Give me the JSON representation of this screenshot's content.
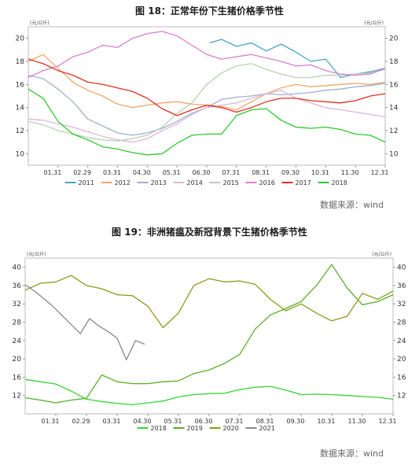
{
  "source_text": "数据来源：wind",
  "chart_data": [
    {
      "type": "line",
      "title": "图 18：正常年份下生猪价格季节性",
      "unit_left": "(元/公斤)",
      "unit_right": "(元/公斤)",
      "x_ticks": [
        "01.31",
        "02.29",
        "03.31",
        "04.30",
        "05.31",
        "06.30",
        "07.31",
        "08.31",
        "09.30",
        "10.31",
        "11.30",
        "12.31"
      ],
      "x_range": [
        0,
        12
      ],
      "ylim": [
        9,
        21
      ],
      "y_ticks": [
        10,
        12,
        14,
        16,
        18,
        20
      ],
      "grid": false,
      "legend_position": "bottom",
      "series": [
        {
          "name": "2011",
          "color": "#4aa3c8",
          "x": [
            6.1,
            6.5,
            7,
            7.5,
            8,
            8.5,
            9,
            9.5,
            10,
            10.5,
            11,
            11.5,
            12
          ],
          "values": [
            19.6,
            19.9,
            19.3,
            19.6,
            18.9,
            19.5,
            18.8,
            18.0,
            18.2,
            16.6,
            16.9,
            17.1,
            17.4
          ]
        },
        {
          "name": "2012",
          "color": "#f0a868",
          "x": [
            0,
            0.5,
            1,
            1.5,
            2,
            2.5,
            3,
            3.5,
            4,
            4.5,
            5,
            5.5,
            6,
            6.5,
            7,
            7.5,
            8,
            8.5,
            9,
            9.5,
            10,
            10.5,
            11,
            11.5,
            12
          ],
          "values": [
            18.0,
            18.6,
            17.4,
            16.2,
            15.5,
            15.0,
            14.3,
            14.0,
            14.2,
            14.4,
            14.5,
            14.3,
            14.2,
            14.1,
            13.8,
            14.5,
            15.2,
            15.7,
            16.0,
            15.8,
            15.9,
            16.0,
            16.1,
            16.0,
            16.2
          ]
        },
        {
          "name": "2013",
          "color": "#9fb0cc",
          "x": [
            0,
            0.5,
            1,
            1.5,
            2,
            2.5,
            3,
            3.5,
            4,
            4.5,
            5,
            5.5,
            6,
            6.5,
            7,
            7.5,
            8,
            8.5,
            9,
            9.5,
            10,
            10.5,
            11,
            11.5,
            12
          ],
          "values": [
            16.8,
            16.5,
            15.6,
            14.5,
            13.0,
            12.4,
            11.8,
            11.6,
            11.8,
            12.2,
            12.8,
            13.5,
            14.0,
            14.7,
            14.9,
            15.0,
            15.2,
            15.1,
            15.2,
            15.3,
            15.5,
            15.6,
            15.8,
            15.9,
            16.1
          ]
        },
        {
          "name": "2014",
          "color": "#e0b4d8",
          "x": [
            0,
            0.5,
            1,
            1.5,
            2,
            2.5,
            3,
            3.5,
            4,
            4.5,
            5,
            5.5,
            6,
            6.5,
            7,
            7.5,
            8,
            8.5,
            9,
            9.5,
            10,
            10.5,
            11,
            11.5,
            12
          ],
          "values": [
            13.0,
            12.9,
            12.6,
            12.3,
            11.9,
            11.5,
            11.2,
            11.0,
            11.3,
            12.0,
            12.6,
            13.4,
            14.0,
            14.2,
            14.4,
            14.8,
            15.2,
            15.5,
            14.8,
            14.4,
            14.0,
            13.8,
            13.6,
            13.4,
            13.2
          ]
        },
        {
          "name": "2015",
          "color": "#b9d2b0",
          "x": [
            0,
            0.5,
            1,
            1.5,
            2,
            2.5,
            3,
            3.5,
            4,
            4.5,
            5,
            5.5,
            6,
            6.5,
            7,
            7.5,
            8,
            8.5,
            9,
            9.5,
            10,
            10.5,
            11,
            11.5,
            12
          ],
          "values": [
            12.8,
            12.5,
            12.0,
            11.7,
            11.4,
            11.2,
            11.1,
            11.3,
            11.6,
            12.3,
            13.5,
            14.4,
            16.0,
            17.0,
            17.6,
            17.8,
            17.3,
            16.9,
            16.6,
            16.6,
            16.8,
            16.8,
            16.9,
            17.0,
            17.3
          ]
        },
        {
          "name": "2016",
          "color": "#d880cf",
          "x": [
            0,
            0.5,
            1,
            1.5,
            2,
            2.5,
            3,
            3.5,
            4,
            4.5,
            5,
            5.5,
            6,
            6.5,
            7,
            7.5,
            8,
            8.5,
            9,
            9.5,
            10,
            10.5,
            11,
            11.5,
            12
          ],
          "values": [
            16.6,
            17.2,
            17.6,
            18.4,
            18.8,
            19.4,
            19.2,
            20.0,
            20.4,
            20.6,
            20.2,
            19.4,
            18.6,
            18.2,
            18.4,
            18.6,
            18.3,
            18.0,
            17.6,
            17.7,
            17.2,
            16.9,
            16.8,
            16.9,
            17.4
          ]
        },
        {
          "name": "2017",
          "color": "#e03020",
          "x": [
            0,
            0.5,
            1,
            1.5,
            2,
            2.5,
            3,
            3.5,
            4,
            4.5,
            5,
            5.5,
            6,
            6.5,
            7,
            7.5,
            8,
            8.5,
            9,
            9.5,
            10,
            10.5,
            11,
            11.5,
            12
          ],
          "values": [
            18.2,
            17.8,
            17.2,
            16.8,
            16.2,
            16.0,
            15.7,
            15.4,
            14.8,
            13.9,
            13.3,
            13.8,
            14.2,
            14.0,
            13.6,
            14.0,
            14.5,
            14.8,
            14.8,
            14.6,
            14.5,
            14.4,
            14.6,
            15.0,
            15.2
          ]
        },
        {
          "name": "2018",
          "color": "#2ec82e",
          "x": [
            0,
            0.5,
            1,
            1.5,
            2,
            2.5,
            3,
            3.5,
            4,
            4.5,
            5,
            5.5,
            6,
            6.5,
            7,
            7.5,
            8,
            8.5,
            9,
            9.5,
            10,
            10.5,
            11,
            11.5,
            12
          ],
          "values": [
            15.6,
            14.8,
            12.8,
            11.7,
            11.2,
            10.6,
            10.4,
            10.1,
            9.9,
            10.0,
            10.9,
            11.6,
            11.7,
            11.7,
            13.3,
            13.8,
            13.9,
            12.9,
            12.3,
            12.2,
            12.3,
            12.1,
            11.7,
            11.6,
            11.0
          ]
        }
      ]
    },
    {
      "type": "line",
      "title": "图 19：非洲猪瘟及新冠背景下生猪价格季节性",
      "unit_left": "(元/公斤)",
      "unit_right": "(元/公斤)",
      "x_ticks": [
        "01.31",
        "02.29",
        "03.31",
        "04.30",
        "05.31",
        "06.30",
        "07.31",
        "08.31",
        "09.30",
        "10.31",
        "11.30",
        "12.31"
      ],
      "x_range": [
        0,
        12
      ],
      "ylim": [
        8,
        42
      ],
      "y_ticks": [
        12,
        16,
        20,
        24,
        28,
        32,
        36,
        40
      ],
      "grid": false,
      "legend_position": "bottom",
      "series": [
        {
          "name": "2018",
          "color": "#33d433",
          "x": [
            0,
            0.5,
            1,
            1.5,
            2,
            2.5,
            3,
            3.5,
            4,
            4.5,
            5,
            5.5,
            6,
            6.5,
            7,
            7.5,
            8,
            8.5,
            9,
            9.5,
            10,
            10.5,
            11,
            11.5,
            12
          ],
          "values": [
            15.5,
            15.0,
            14.5,
            13.0,
            11.2,
            10.7,
            10.3,
            10.0,
            10.4,
            10.8,
            11.7,
            12.2,
            12.4,
            12.5,
            13.3,
            13.8,
            14.0,
            13.2,
            12.2,
            12.3,
            12.2,
            12.0,
            11.8,
            11.6,
            11.2
          ]
        },
        {
          "name": "2019",
          "color": "#55b025",
          "x": [
            0,
            0.5,
            1,
            1.5,
            2,
            2.5,
            3,
            3.5,
            4,
            4.5,
            5,
            5.5,
            6,
            6.5,
            7,
            7.5,
            8,
            8.5,
            9,
            9.5,
            10,
            10.5,
            11,
            11.5,
            12
          ],
          "values": [
            11.5,
            11.0,
            10.4,
            11.0,
            11.4,
            16.5,
            15.0,
            14.6,
            14.6,
            15.0,
            15.2,
            16.8,
            17.6,
            19.0,
            21.0,
            26.5,
            29.6,
            31.0,
            32.5,
            36.0,
            40.6,
            35.5,
            31.8,
            32.5,
            34.0
          ]
        },
        {
          "name": "2020",
          "color": "#8c9a1e",
          "x": [
            0,
            0.5,
            1,
            1.5,
            2,
            2.5,
            3,
            3.5,
            4,
            4.5,
            5,
            5.5,
            6,
            6.5,
            7,
            7.5,
            8,
            8.5,
            9,
            9.5,
            10,
            10.5,
            11,
            11.5,
            12
          ],
          "values": [
            35.0,
            36.5,
            36.8,
            38.2,
            36.0,
            35.3,
            34.0,
            33.8,
            31.5,
            26.8,
            30.0,
            36.0,
            37.5,
            36.8,
            37.0,
            36.3,
            33.0,
            30.5,
            32.0,
            30.0,
            28.3,
            29.3,
            34.3,
            33.0,
            34.8
          ]
        },
        {
          "name": "2021",
          "color": "#888888",
          "x": [
            0,
            0.3,
            0.6,
            0.9,
            1.2,
            1.5,
            1.8,
            2.1,
            2.4,
            2.7,
            3.0,
            3.3,
            3.6,
            3.9
          ],
          "values": [
            36.2,
            34.8,
            33.2,
            31.5,
            29.5,
            27.5,
            25.5,
            28.8,
            27.2,
            26.0,
            24.5,
            19.8,
            24.0,
            23.2
          ]
        }
      ]
    }
  ]
}
